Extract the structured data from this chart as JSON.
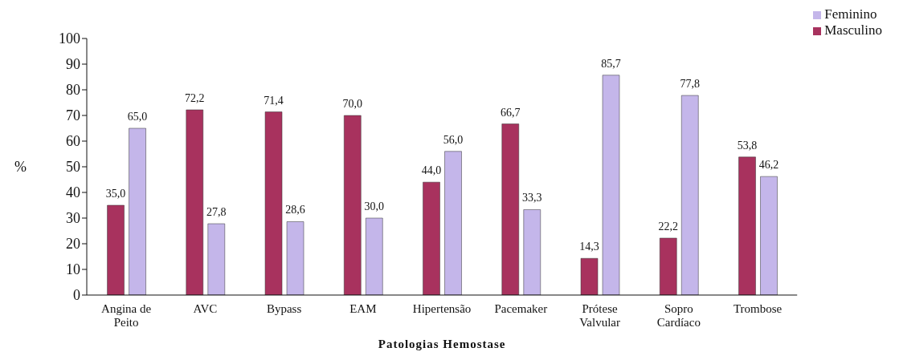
{
  "chart_data": {
    "type": "bar",
    "xlabel": "Patologias Hemostase",
    "ylabel": "%",
    "categories": [
      "Angina de Peito",
      "AVC",
      "Bypass",
      "EAM",
      "Hipertensão",
      "Pacemaker",
      "Prótese Valvular",
      "Sopro Cardíaco",
      "Trombose"
    ],
    "series": [
      {
        "name": "Masculino",
        "color": "#a8325e",
        "values": [
          35.0,
          72.2,
          71.4,
          70.0,
          44.0,
          66.7,
          14.3,
          22.2,
          53.8
        ],
        "value_labels": [
          "35,0",
          "72,2",
          "71,4",
          "70,0",
          "44,0",
          "66,7",
          "14,3",
          "22,2",
          "53,8"
        ]
      },
      {
        "name": "Feminino",
        "color": "#c4b6ea",
        "values": [
          65.0,
          27.8,
          28.6,
          30.0,
          56.0,
          33.3,
          85.7,
          77.8,
          46.2
        ],
        "value_labels": [
          "65,0",
          "27,8",
          "28,6",
          "30,0",
          "56,0",
          "33,3",
          "85,7",
          "77,8",
          "46,2"
        ]
      }
    ],
    "ylim": [
      0,
      100
    ],
    "yticks": [
      0,
      10,
      20,
      30,
      40,
      50,
      60,
      70,
      80,
      90,
      100
    ],
    "grid": false,
    "legend": "top right"
  }
}
